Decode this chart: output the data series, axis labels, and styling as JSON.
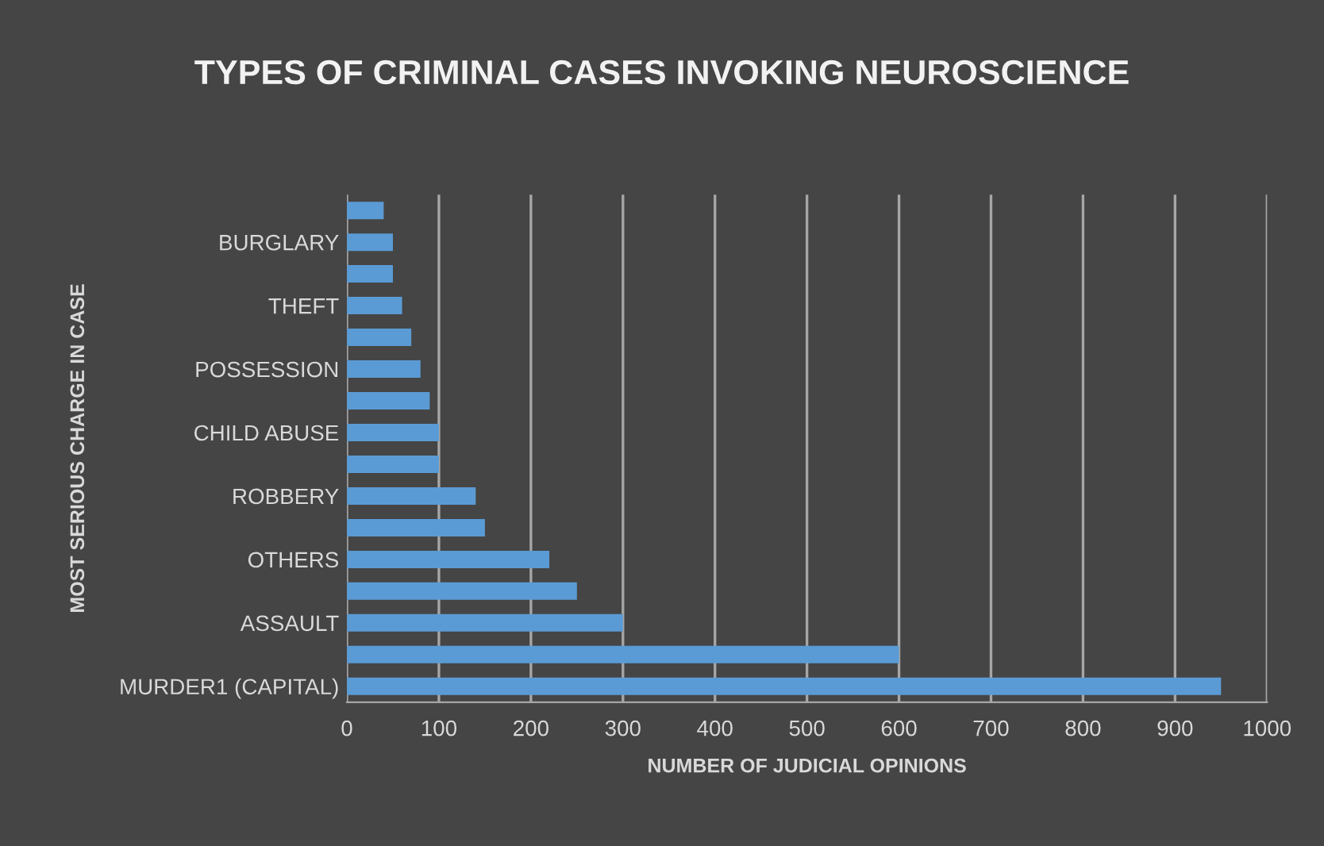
{
  "chart_data": {
    "type": "bar",
    "orientation": "horizontal",
    "title": "TYPES OF CRIMINAL CASES INVOKING NEUROSCIENCE",
    "xlabel": "NUMBER OF JUDICIAL OPINIONS",
    "ylabel": "MOST SERIOUS CHARGE IN CASE",
    "categories": [
      null,
      "BURGLARY",
      null,
      "THEFT",
      null,
      "POSSESSION",
      null,
      "CHILD ABUSE",
      null,
      "ROBBERY",
      null,
      "OTHERS",
      null,
      "ASSAULT",
      null,
      "MURDER1 (CAPITAL)"
    ],
    "values": [
      40,
      50,
      50,
      60,
      70,
      80,
      90,
      100,
      100,
      140,
      150,
      220,
      250,
      300,
      600,
      950
    ],
    "color": "#5b9bd5",
    "xlim": [
      0,
      1000
    ],
    "xticks": [
      0,
      100,
      200,
      300,
      400,
      500,
      600,
      700,
      800,
      900,
      1000
    ],
    "grid": "x",
    "legend": false
  }
}
